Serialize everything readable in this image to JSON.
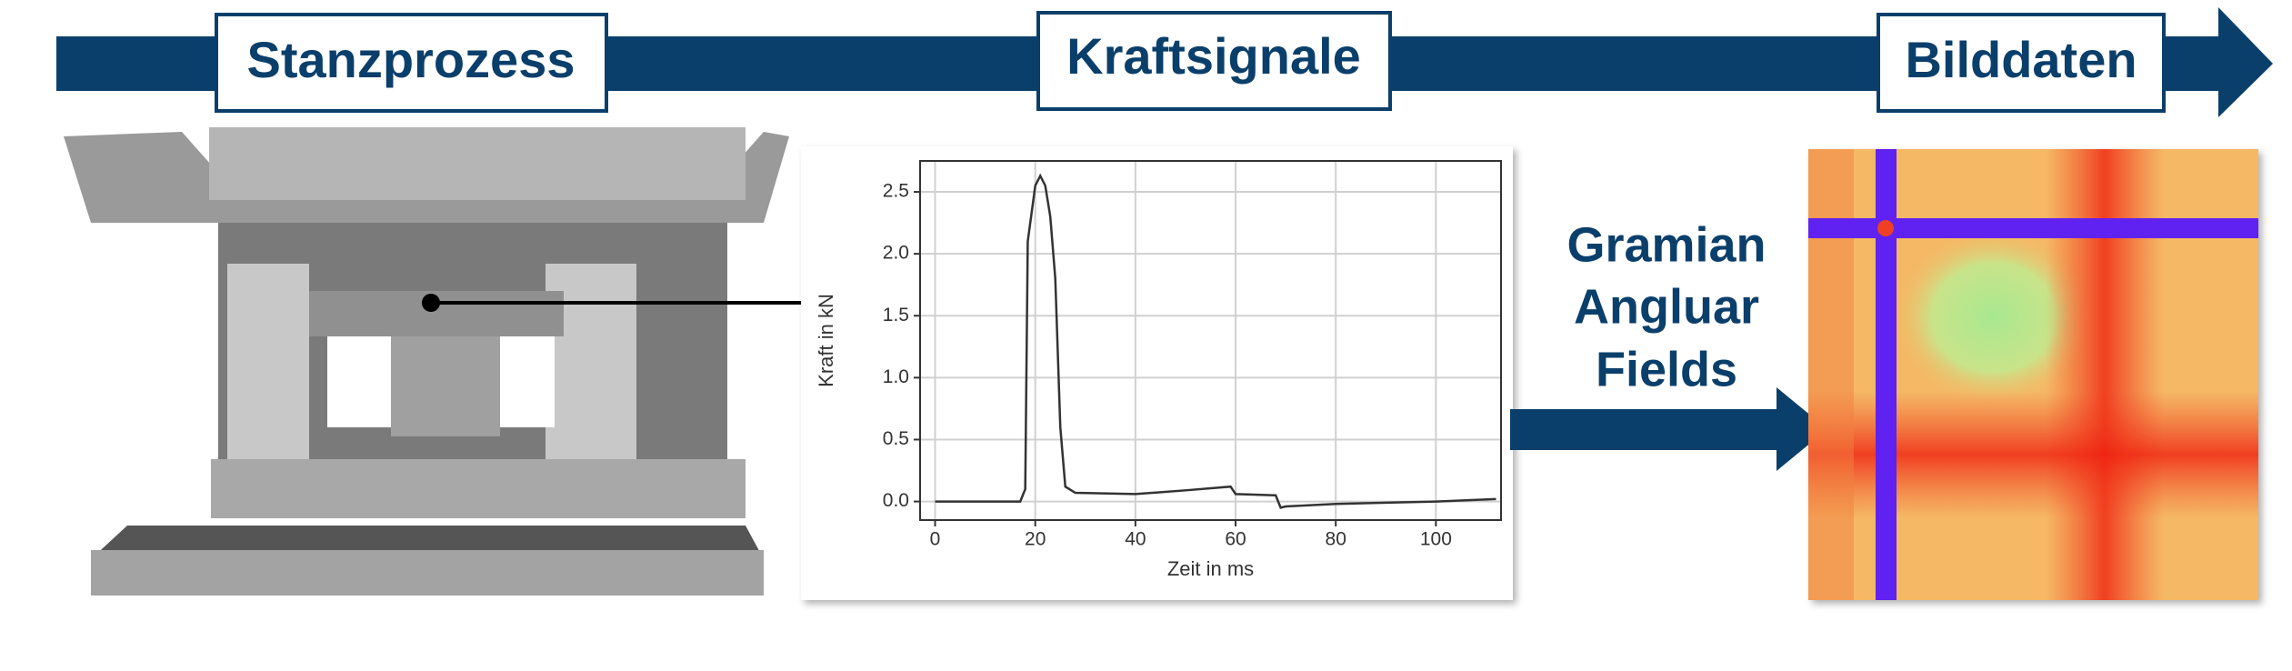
{
  "labels": {
    "stage_1": "Stanzprozess",
    "stage_2": "Kraftsignale",
    "stage_3": "Bilddaten",
    "transform": [
      "Gramian",
      "Angluar",
      "Fields"
    ]
  },
  "chart_data": {
    "type": "line",
    "xlabel": "Zeit in ms",
    "ylabel": "Kraft in kN",
    "x": [
      0,
      17,
      18,
      18.5,
      20,
      21,
      22,
      23,
      24,
      25,
      26,
      28,
      40,
      50,
      59,
      60,
      68,
      69,
      70,
      75,
      80,
      90,
      100,
      112
    ],
    "series": [
      {
        "color": "#333333",
        "values": [
          0,
          0,
          0.1,
          2.1,
          2.55,
          2.63,
          2.55,
          2.3,
          1.8,
          0.6,
          0.12,
          0.07,
          0.06,
          0.09,
          0.12,
          0.06,
          0.05,
          -0.05,
          -0.04,
          -0.03,
          -0.02,
          -0.01,
          0,
          0.02
        ]
      }
    ],
    "xlim": [
      -3,
      113
    ],
    "ylim": [
      -0.15,
      2.75
    ],
    "xticks": [
      0,
      20,
      40,
      60,
      80,
      100
    ],
    "yticks": [
      {
        "value": 0,
        "label": "0.0"
      },
      0.5,
      {
        "value": 1,
        "label": "1.0"
      },
      1.5,
      {
        "value": 2,
        "label": "2.0"
      },
      2.5
    ],
    "grid": true
  }
}
